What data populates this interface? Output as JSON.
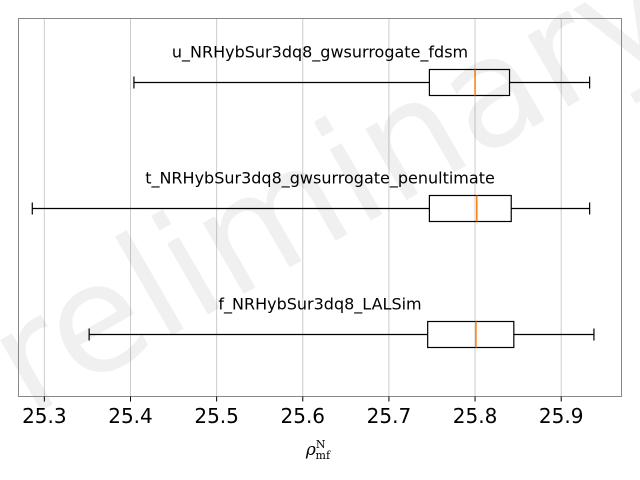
{
  "chart_data": {
    "type": "box",
    "orientation": "horizontal",
    "xlabel": "ρ",
    "xlabel_sup": "N",
    "xlabel_sub": "mf",
    "xlim": [
      25.27,
      25.97
    ],
    "xticks": [
      25.3,
      25.4,
      25.5,
      25.6,
      25.7,
      25.8,
      25.9
    ],
    "xtick_labels": [
      "25.3",
      "25.4",
      "25.5",
      "25.6",
      "25.7",
      "25.8",
      "25.9"
    ],
    "grid": "vertical",
    "watermark": "Preliminary",
    "colors": {
      "box": "#000000",
      "median": "#ff7f0e",
      "grid": "#cccccc"
    },
    "series": [
      {
        "name": "u_NRHybSur3dq8_gwsurrogate_fdsm",
        "whisker_low": 25.404,
        "q1": 25.747,
        "median": 25.8,
        "q3": 25.84,
        "whisker_high": 25.933
      },
      {
        "name": "t_NRHybSur3dq8_gwsurrogate_penultimate",
        "whisker_low": 25.286,
        "q1": 25.747,
        "median": 25.802,
        "q3": 25.842,
        "whisker_high": 25.933
      },
      {
        "name": "f_NRHybSur3dq8_LALSim",
        "whisker_low": 25.352,
        "q1": 25.745,
        "median": 25.801,
        "q3": 25.845,
        "whisker_high": 25.938
      }
    ]
  }
}
